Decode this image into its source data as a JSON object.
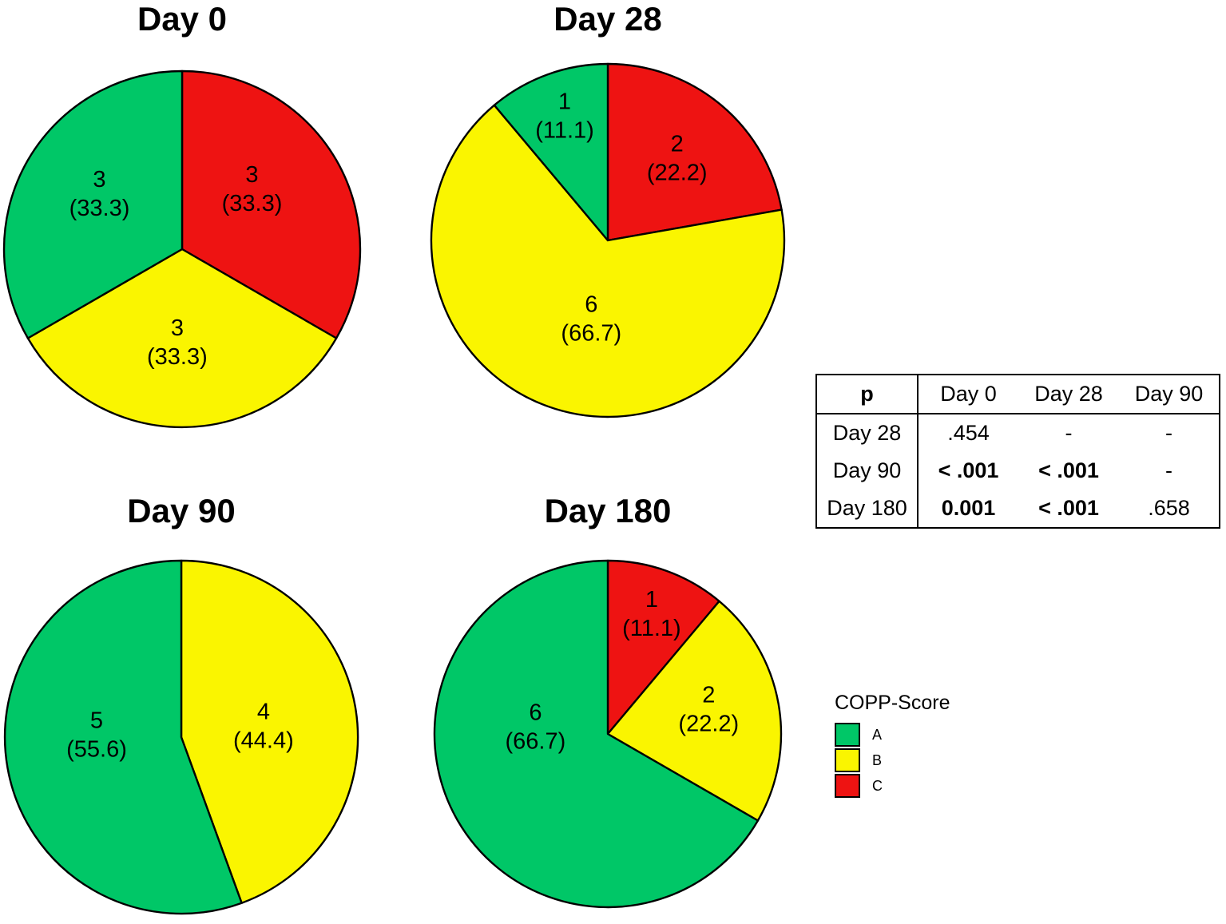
{
  "figure": {
    "background": "#ffffff"
  },
  "legend": {
    "title": "COPP-Score",
    "items": [
      {
        "label": "A",
        "color": "#00C767"
      },
      {
        "label": "B",
        "color": "#FAF500"
      },
      {
        "label": "C",
        "color": "#EE1312"
      }
    ]
  },
  "p_table": {
    "corner_label": "p",
    "col_headers": [
      "Day 0",
      "Day 28",
      "Day 90"
    ],
    "rows": [
      {
        "label": "Day 28",
        "cells": [
          {
            "text": ".454",
            "bold": false
          },
          {
            "text": "-",
            "bold": false
          },
          {
            "text": "-",
            "bold": false
          }
        ]
      },
      {
        "label": "Day 90",
        "cells": [
          {
            "text": "< .001",
            "bold": true
          },
          {
            "text": "< .001",
            "bold": true
          },
          {
            "text": "-",
            "bold": false
          }
        ]
      },
      {
        "label": "Day 180",
        "cells": [
          {
            "text": "0.001",
            "bold": true
          },
          {
            "text": "< .001",
            "bold": true
          },
          {
            "text": ".658",
            "bold": false
          }
        ]
      }
    ]
  },
  "chart_data": [
    {
      "type": "pie",
      "title": "Day 0",
      "start_angle": "12-oclock",
      "direction": "clockwise",
      "total": 9,
      "slices": [
        {
          "category": "C",
          "value": 3,
          "pct": 33.3,
          "value_label": "3",
          "pct_label": "(33.3)"
        },
        {
          "category": "B",
          "value": 3,
          "pct": 33.3,
          "value_label": "3",
          "pct_label": "(33.3)"
        },
        {
          "category": "A",
          "value": 3,
          "pct": 33.3,
          "value_label": "3",
          "pct_label": "(33.3)"
        }
      ]
    },
    {
      "type": "pie",
      "title": "Day 28",
      "start_angle": "12-oclock",
      "direction": "clockwise",
      "total": 9,
      "slices": [
        {
          "category": "C",
          "value": 2,
          "pct": 22.2,
          "value_label": "2",
          "pct_label": "(22.2)"
        },
        {
          "category": "B",
          "value": 6,
          "pct": 66.7,
          "value_label": "6",
          "pct_label": "(66.7)"
        },
        {
          "category": "A",
          "value": 1,
          "pct": 11.1,
          "value_label": "1",
          "pct_label": "(11.1)"
        }
      ]
    },
    {
      "type": "pie",
      "title": "Day 90",
      "start_angle": "12-oclock",
      "direction": "clockwise",
      "total": 9,
      "slices": [
        {
          "category": "B",
          "value": 4,
          "pct": 44.4,
          "value_label": "4",
          "pct_label": "(44.4)"
        },
        {
          "category": "A",
          "value": 5,
          "pct": 55.6,
          "value_label": "5",
          "pct_label": "(55.6)"
        }
      ]
    },
    {
      "type": "pie",
      "title": "Day 180",
      "start_angle": "12-oclock",
      "direction": "clockwise",
      "total": 9,
      "slices": [
        {
          "category": "C",
          "value": 1,
          "pct": 11.1,
          "value_label": "1",
          "pct_label": "(11.1)"
        },
        {
          "category": "B",
          "value": 2,
          "pct": 22.2,
          "value_label": "2",
          "pct_label": "(22.2)"
        },
        {
          "category": "A",
          "value": 6,
          "pct": 66.7,
          "value_label": "6",
          "pct_label": "(66.7)"
        }
      ]
    }
  ]
}
